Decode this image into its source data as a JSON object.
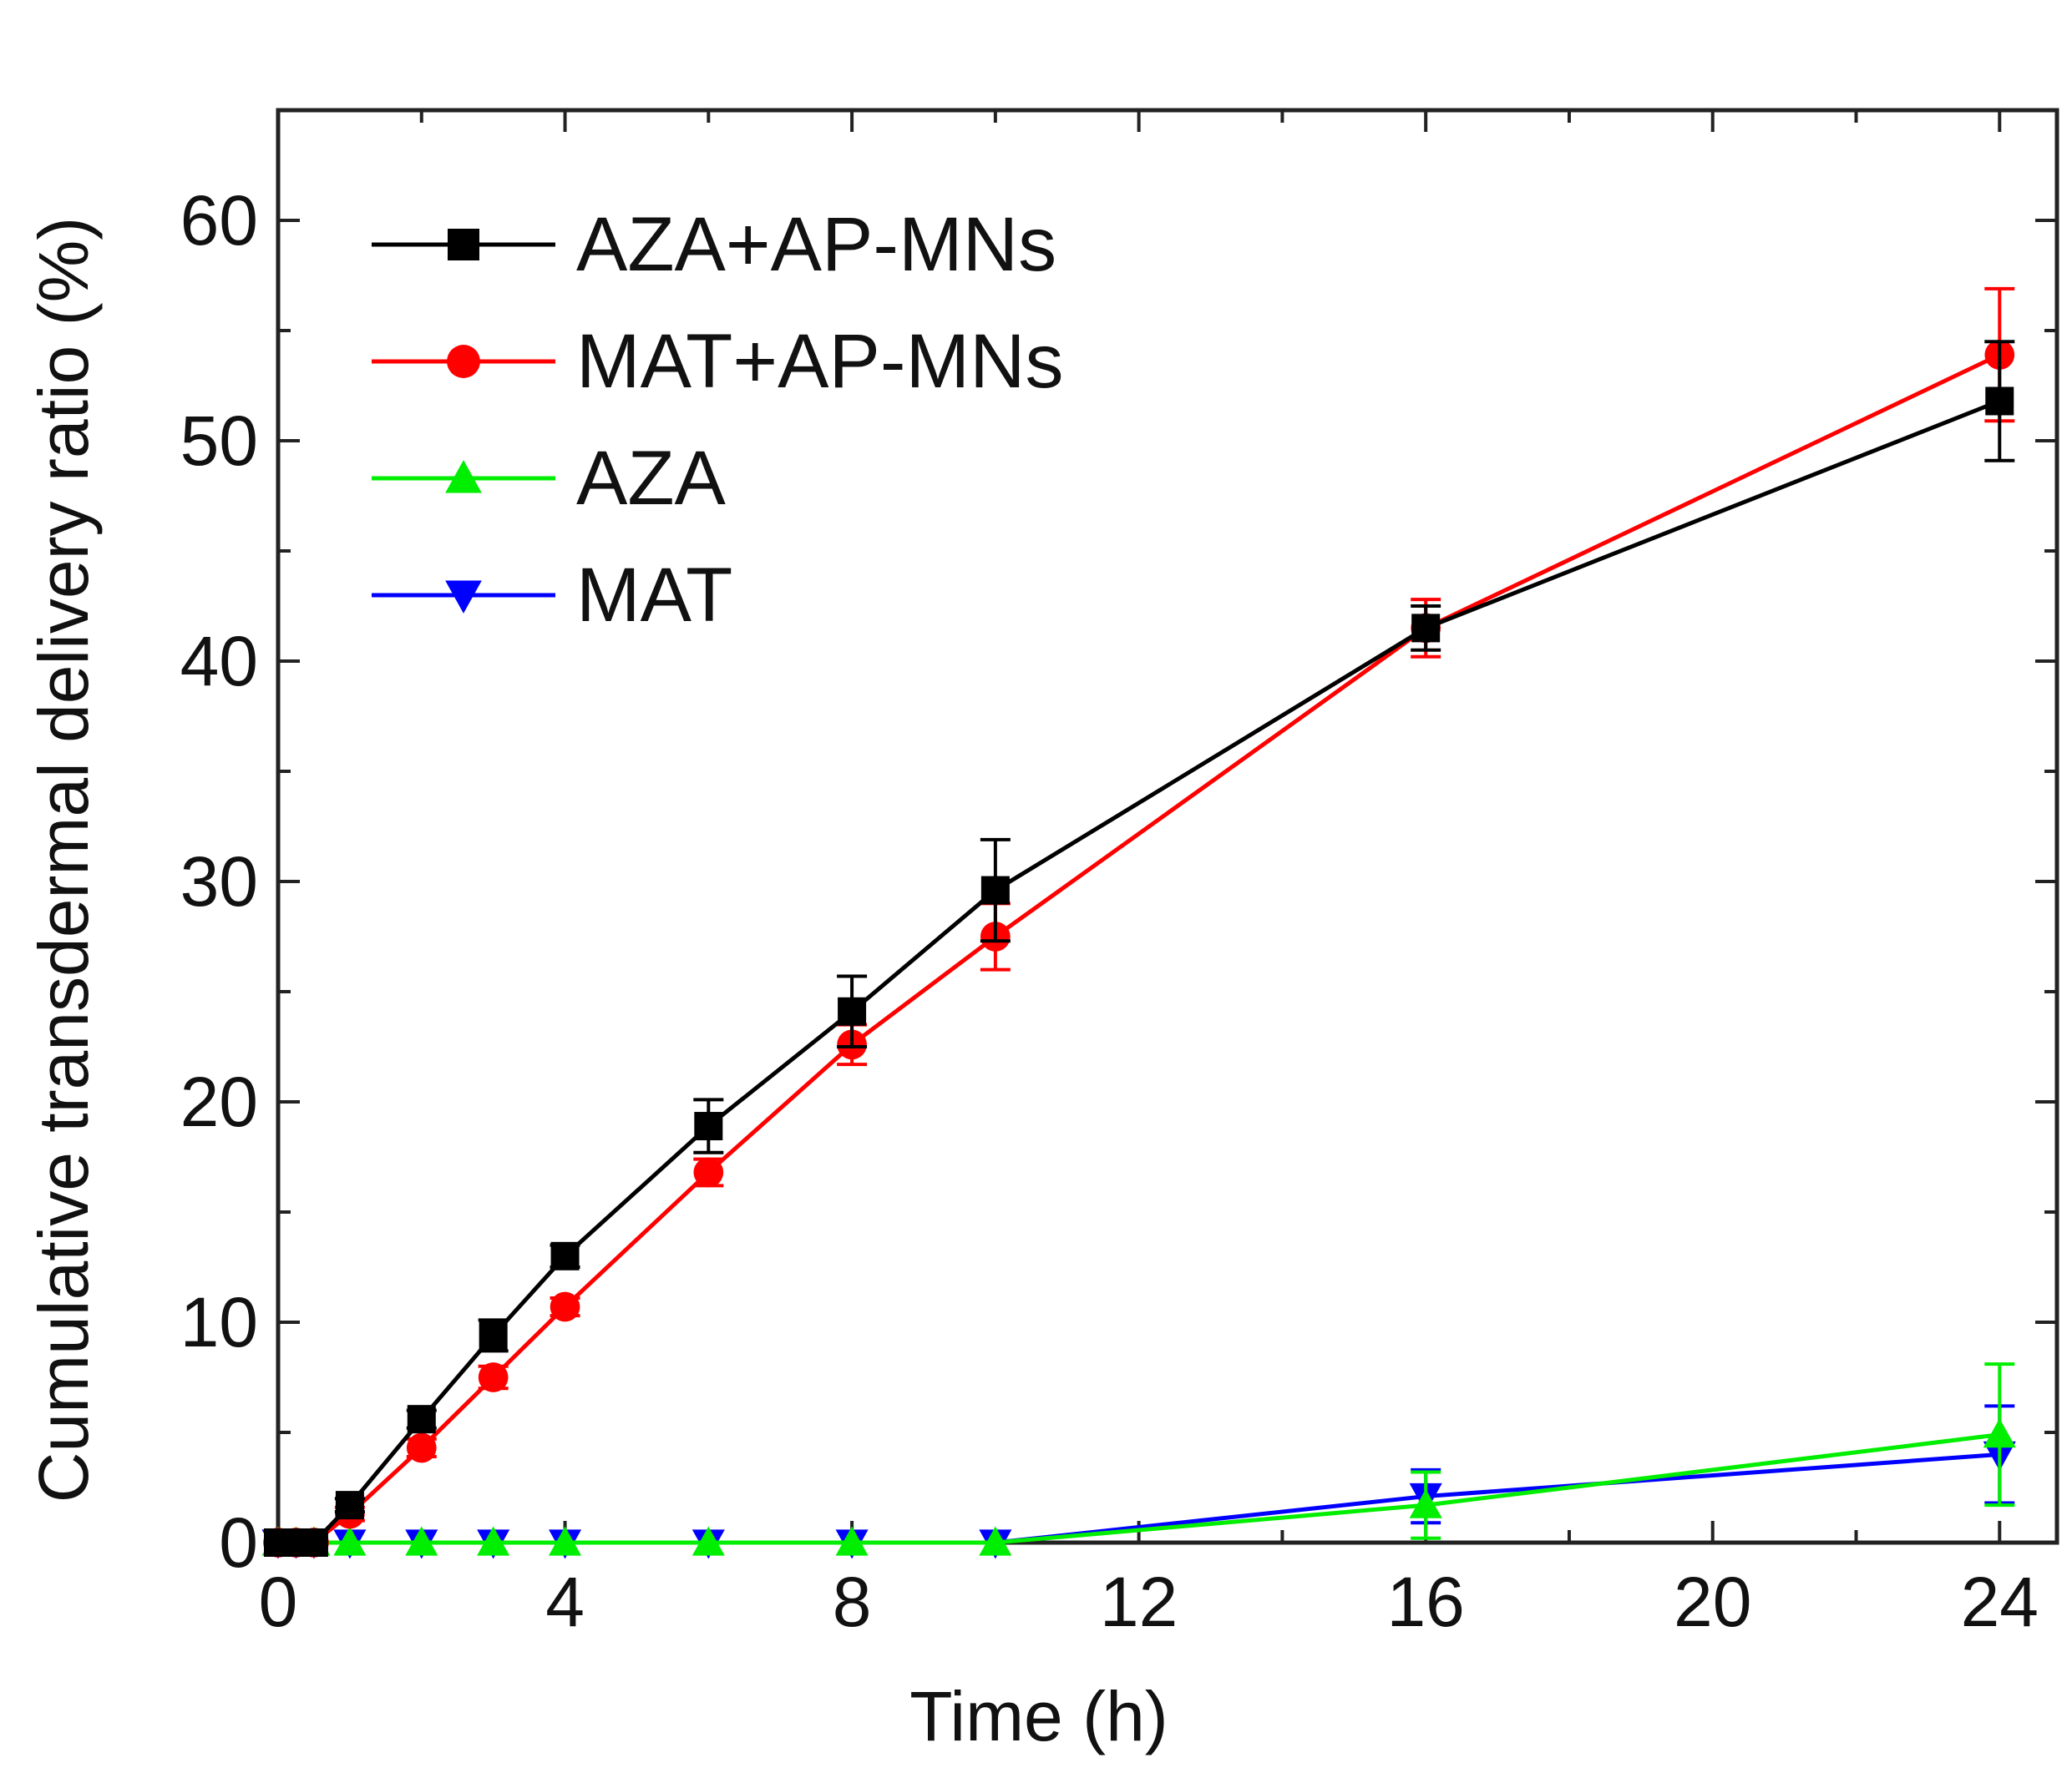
{
  "chart_data": {
    "type": "line",
    "title": "",
    "xlabel": "Time (h)",
    "ylabel": "Cumulative transdermal delivery ratio (%)",
    "xlim": [
      0,
      24.8
    ],
    "ylim": [
      0,
      65
    ],
    "xticks": [
      0,
      4,
      8,
      12,
      16,
      20,
      24
    ],
    "xtick_labels": [
      "0",
      "4",
      "8",
      "12",
      "16",
      "20",
      "24"
    ],
    "yticks": [
      0,
      10,
      20,
      30,
      40,
      50,
      60
    ],
    "ytick_labels": [
      "0",
      "10",
      "20",
      "30",
      "40",
      "50",
      "60"
    ],
    "legend_position": "top-left",
    "grid": false,
    "series": [
      {
        "name": "AZA+AP-MNs",
        "color": "#000000",
        "marker": "square",
        "x": [
          0,
          0.25,
          0.5,
          1,
          2,
          3,
          4,
          6,
          8,
          10,
          16,
          24
        ],
        "y": [
          0,
          0,
          0,
          1.7,
          5.6,
          9.4,
          13.0,
          18.9,
          24.1,
          29.6,
          41.5,
          51.8
        ],
        "err": [
          0,
          0,
          0,
          0.3,
          0.4,
          0.7,
          0.5,
          1.2,
          1.6,
          2.3,
          1.0,
          2.7
        ]
      },
      {
        "name": "MAT+AP-MNs",
        "color": "#ff0000",
        "marker": "circle",
        "x": [
          0,
          0.25,
          0.5,
          1,
          2,
          3,
          4,
          6,
          8,
          10,
          16,
          24
        ],
        "y": [
          0,
          0,
          0,
          1.3,
          4.3,
          7.5,
          10.7,
          16.8,
          22.6,
          27.5,
          41.5,
          53.9
        ],
        "err": [
          0,
          0,
          0,
          0.3,
          0.4,
          0.5,
          0.4,
          0.6,
          0.9,
          1.5,
          1.3,
          3.0
        ]
      },
      {
        "name": "AZA",
        "color": "#00ee00",
        "marker": "triangle-up",
        "x": [
          0,
          0.25,
          0.5,
          1,
          2,
          3,
          4,
          6,
          8,
          10,
          16,
          24
        ],
        "y": [
          0,
          0,
          0,
          0,
          0,
          0,
          0,
          0,
          0,
          0,
          1.7,
          4.9
        ],
        "err": [
          0,
          0,
          0,
          0,
          0,
          0,
          0,
          0,
          0,
          0,
          1.5,
          3.2
        ]
      },
      {
        "name": "MAT",
        "color": "#0000ff",
        "marker": "triangle-down",
        "x": [
          0,
          0.25,
          0.5,
          1,
          2,
          3,
          4,
          6,
          8,
          10,
          16,
          24
        ],
        "y": [
          0,
          0,
          0,
          0,
          0,
          0,
          0,
          0,
          0,
          0,
          2.1,
          4.0
        ],
        "err": [
          0,
          0,
          0,
          0,
          0,
          0,
          0,
          0,
          0,
          0,
          1.2,
          2.2
        ]
      }
    ]
  }
}
